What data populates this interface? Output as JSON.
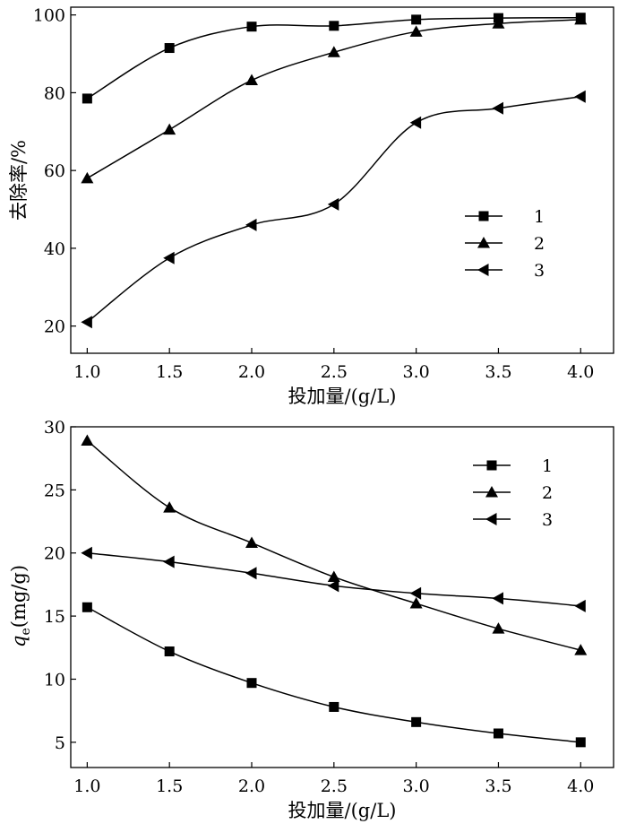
{
  "chart_data": [
    {
      "type": "line",
      "title": "",
      "xlabel": "投加量/(g/L)",
      "ylabel": "去除率/%",
      "xlim": [
        0.9,
        4.2
      ],
      "ylim": [
        13,
        102
      ],
      "xticks": [
        "1.0",
        "1.5",
        "2.0",
        "2.5",
        "3.0",
        "3.5",
        "4.0"
      ],
      "yticks": [
        "20",
        "40",
        "60",
        "80",
        "100"
      ],
      "x": [
        1.0,
        1.5,
        2.0,
        2.5,
        3.0,
        3.5,
        4.0
      ],
      "grid": false,
      "legend_position": "center-right",
      "series": [
        {
          "name": "1",
          "marker": "square",
          "values": [
            78.5,
            91.5,
            97.0,
            97.2,
            98.8,
            99.2,
            99.3
          ]
        },
        {
          "name": "2",
          "marker": "triangle-up",
          "values": [
            58.0,
            70.5,
            83.2,
            90.4,
            95.7,
            97.8,
            98.8
          ]
        },
        {
          "name": "3",
          "marker": "triangle-left",
          "values": [
            21.0,
            37.5,
            46.0,
            51.3,
            72.3,
            76.0,
            79.0
          ]
        }
      ]
    },
    {
      "type": "line",
      "title": "",
      "xlabel": "投加量/(g/L)",
      "ylabel_italic": "q",
      "ylabel_subscript": "e",
      "ylabel_rest": "(mg/g)",
      "xlim": [
        0.9,
        4.2
      ],
      "ylim": [
        3,
        30
      ],
      "xticks": [
        "1.0",
        "1.5",
        "2.0",
        "2.5",
        "3.0",
        "3.5",
        "4.0"
      ],
      "yticks": [
        "5",
        "10",
        "15",
        "20",
        "25",
        "30"
      ],
      "x": [
        1.0,
        1.5,
        2.0,
        2.5,
        3.0,
        3.5,
        4.0
      ],
      "grid": false,
      "legend_position": "top-right",
      "series": [
        {
          "name": "1",
          "marker": "square",
          "values": [
            15.7,
            12.2,
            9.7,
            7.8,
            6.6,
            5.7,
            5.0
          ]
        },
        {
          "name": "2",
          "marker": "triangle-up",
          "values": [
            28.9,
            23.6,
            20.8,
            18.1,
            16.0,
            14.0,
            12.3
          ]
        },
        {
          "name": "3",
          "marker": "triangle-left",
          "values": [
            20.0,
            19.3,
            18.4,
            17.4,
            16.8,
            16.4,
            15.8
          ]
        }
      ]
    }
  ]
}
